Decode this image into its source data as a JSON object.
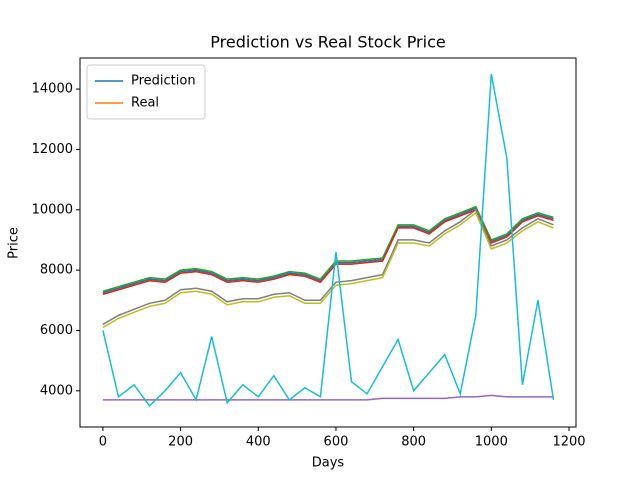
{
  "chart_data": {
    "type": "line",
    "title": "Prediction vs Real Stock Price",
    "x_label": "Days",
    "y_label": "Price",
    "x": [
      0,
      40,
      80,
      120,
      160,
      200,
      240,
      280,
      320,
      360,
      400,
      440,
      480,
      520,
      560,
      600,
      640,
      680,
      720,
      760,
      800,
      840,
      880,
      920,
      960,
      1000,
      1040,
      1080,
      1120,
      1160
    ],
    "series": [
      {
        "name": "Prediction",
        "color": "#1f77b4",
        "values": [
          7250,
          7400,
          7550,
          7700,
          7650,
          7950,
          8000,
          7900,
          7650,
          7700,
          7650,
          7750,
          7900,
          7850,
          7650,
          8250,
          8250,
          8300,
          8350,
          9450,
          9450,
          9250,
          9650,
          9850,
          10050,
          8950,
          9150,
          9650,
          9850,
          9700
        ]
      },
      {
        "name": "Real",
        "color": "#ff7f0e",
        "values": [
          7200,
          7350,
          7500,
          7650,
          7600,
          7900,
          7950,
          7850,
          7600,
          7650,
          7600,
          7700,
          7850,
          7800,
          7600,
          8200,
          8200,
          8250,
          8300,
          9400,
          9400,
          9200,
          9600,
          9800,
          10000,
          8900,
          9100,
          9600,
          9800,
          9650
        ]
      },
      {
        "color": "#2ca02c",
        "values": [
          7300,
          7450,
          7600,
          7750,
          7700,
          8000,
          8050,
          7950,
          7700,
          7750,
          7700,
          7800,
          7950,
          7900,
          7700,
          8300,
          8300,
          8350,
          8400,
          9500,
          9500,
          9300,
          9700,
          9900,
          10100,
          9000,
          9200,
          9700,
          9900,
          9750
        ]
      },
      {
        "color": "#d62728",
        "values": [
          7200,
          7350,
          7500,
          7650,
          7600,
          7900,
          7950,
          7850,
          7600,
          7650,
          7600,
          7700,
          7850,
          7800,
          7600,
          8200,
          8200,
          8250,
          8300,
          9400,
          9400,
          9200,
          9600,
          9800,
          10000,
          8900,
          9100,
          9600,
          9800,
          9650
        ]
      },
      {
        "color": "#9467bd",
        "values": [
          3700,
          3700,
          3700,
          3700,
          3700,
          3700,
          3700,
          3700,
          3700,
          3700,
          3700,
          3700,
          3700,
          3700,
          3700,
          3700,
          3700,
          3700,
          3750,
          3750,
          3750,
          3750,
          3750,
          3800,
          3800,
          3850,
          3800,
          3800,
          3800,
          3800
        ]
      },
      {
        "color": "#7f7f7f",
        "values": [
          6200,
          6500,
          6700,
          6900,
          7000,
          7350,
          7400,
          7300,
          6950,
          7050,
          7050,
          7200,
          7250,
          7000,
          7000,
          7600,
          7650,
          7750,
          7850,
          9000,
          9000,
          8900,
          9300,
          9600,
          10000,
          8800,
          9000,
          9400,
          9700,
          9500
        ]
      },
      {
        "color": "#bcbd22",
        "values": [
          6100,
          6400,
          6600,
          6800,
          6900,
          7250,
          7300,
          7200,
          6850,
          6950,
          6950,
          7100,
          7150,
          6900,
          6900,
          7500,
          7550,
          7650,
          7750,
          8900,
          8900,
          8800,
          9200,
          9500,
          9900,
          8700,
          8900,
          9300,
          9600,
          9400
        ]
      },
      {
        "color": "#17becf",
        "values": [
          6000,
          3800,
          4200,
          3500,
          4000,
          4600,
          3700,
          5800,
          3600,
          4200,
          3800,
          4500,
          3700,
          4100,
          3800,
          8600,
          4300,
          3900,
          4800,
          5700,
          4000,
          4600,
          5200,
          3900,
          6500,
          14500,
          11700,
          4200,
          7000,
          3700
        ]
      }
    ],
    "xlim": [
      -59,
      1218
    ],
    "ylim": [
      2800,
      15030
    ],
    "xticks": [
      0,
      200,
      400,
      600,
      800,
      1000,
      1200
    ],
    "yticks": [
      4000,
      6000,
      8000,
      10000,
      12000,
      14000
    ],
    "legend": "upper left"
  }
}
